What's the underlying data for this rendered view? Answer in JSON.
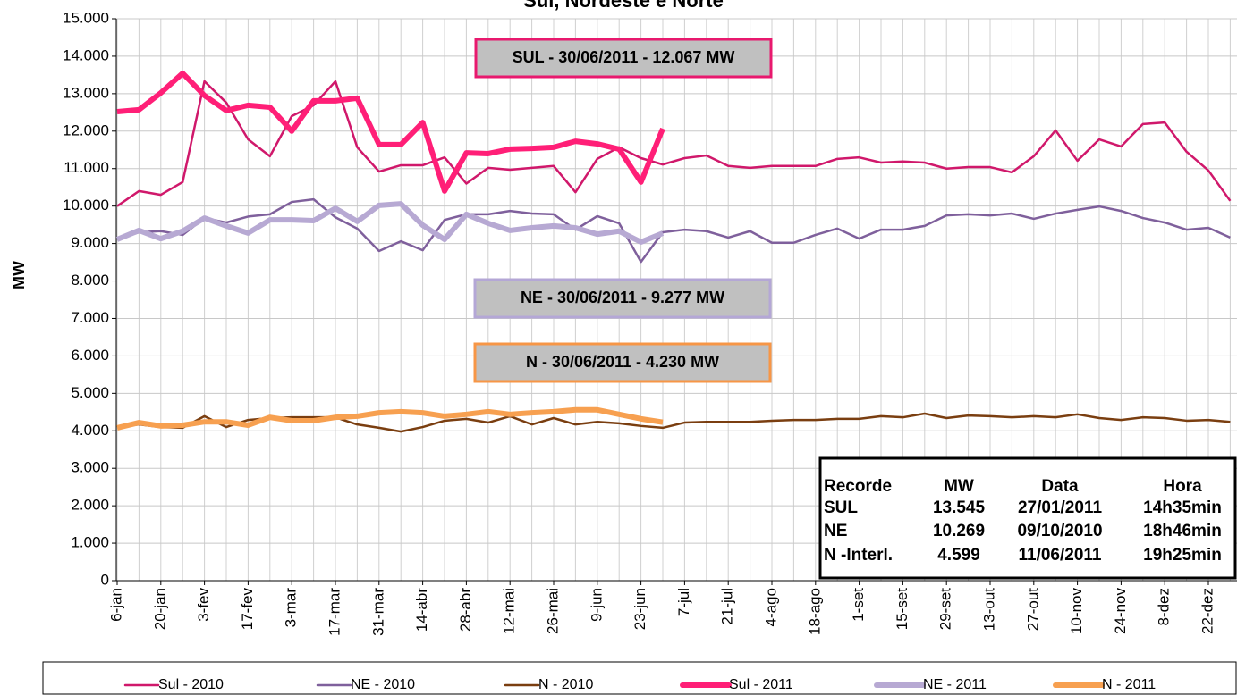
{
  "chart_data": {
    "type": "line",
    "title": "Sul, Nordeste e Norte",
    "y_label": "MW",
    "grid": true,
    "categories": [
      "6-jan",
      null,
      "20-jan",
      null,
      "3-fev",
      null,
      "17-fev",
      null,
      "3-mar",
      null,
      "17-mar",
      null,
      "31-mar",
      null,
      "14-abr",
      null,
      "28-abr",
      null,
      "12-mai",
      null,
      "26-mai",
      null,
      "9-jun",
      null,
      "23-jun",
      null,
      "7-jul",
      null,
      "21-jul",
      null,
      "4-ago",
      null,
      "18-ago",
      null,
      "1-set",
      null,
      "15-set",
      null,
      "29-set",
      null,
      "13-out",
      null,
      "27-out",
      null,
      "10-nov",
      null,
      "24-nov",
      null,
      "8-dez",
      null,
      "22-dez",
      null
    ],
    "ylim": [
      0,
      15000
    ],
    "yticks": [
      0,
      {
        "value": 1000,
        "label": "1.000"
      },
      {
        "value": 2000,
        "label": "2.000"
      },
      {
        "value": 3000,
        "label": "3.000"
      },
      {
        "value": 4000,
        "label": "4.000"
      },
      {
        "value": 5000,
        "label": "5.000"
      },
      {
        "value": 6000,
        "label": "6.000"
      },
      {
        "value": 7000,
        "label": "7.000"
      },
      {
        "value": 8000,
        "label": "8.000"
      },
      {
        "value": 9000,
        "label": "9.000"
      },
      {
        "value": 10000,
        "label": "10.000"
      },
      {
        "value": 11000,
        "label": "11.000"
      },
      {
        "value": 12000,
        "label": "12.000"
      },
      {
        "value": 13000,
        "label": "13.000"
      },
      {
        "value": 14000,
        "label": "14.000"
      },
      {
        "value": 15000,
        "label": "15.000"
      }
    ],
    "series": [
      {
        "name": "Sul - 2010",
        "color": "#d0186b",
        "line_width": 2.5,
        "values": [
          10000,
          10400,
          10300,
          10640,
          13330,
          12760,
          11780,
          11330,
          12400,
          12690,
          13330,
          11570,
          10920,
          11090,
          11090,
          11300,
          10600,
          11020,
          10970,
          11020,
          11070,
          10370,
          11260,
          11570,
          11280,
          11110,
          11280,
          11350,
          11070,
          11020,
          11070,
          11070,
          11070,
          11260,
          11300,
          11160,
          11190,
          11160,
          11000,
          11040,
          11040,
          10900,
          11330,
          12020,
          11210,
          11780,
          11590,
          12190,
          12230,
          11450,
          10950,
          10140
        ]
      },
      {
        "name": "NE - 2010",
        "color": "#7f609c",
        "line_width": 2.5,
        "values": [
          9110,
          9300,
          9330,
          9230,
          9680,
          9560,
          9720,
          9780,
          10110,
          10180,
          9700,
          9400,
          8800,
          9060,
          8820,
          9630,
          9780,
          9780,
          9870,
          9800,
          9780,
          9370,
          9730,
          9540,
          8510,
          9300,
          9370,
          9330,
          9160,
          9330,
          9020,
          9020,
          9230,
          9400,
          9130,
          9370,
          9370,
          9470,
          9750,
          9780,
          9750,
          9800,
          9660,
          9800,
          9900,
          9990,
          9870,
          9680,
          9560,
          9370,
          9420,
          9160
        ]
      },
      {
        "name": "N - 2010",
        "color": "#7a3e10",
        "line_width": 2.5,
        "values": [
          4100,
          4170,
          4100,
          4080,
          4390,
          4100,
          4290,
          4340,
          4360,
          4360,
          4360,
          4170,
          4080,
          3980,
          4100,
          4270,
          4320,
          4220,
          4390,
          4170,
          4340,
          4170,
          4240,
          4200,
          4130,
          4080,
          4220,
          4240,
          4240,
          4240,
          4270,
          4290,
          4290,
          4320,
          4320,
          4390,
          4360,
          4460,
          4340,
          4410,
          4390,
          4360,
          4390,
          4360,
          4440,
          4340,
          4290,
          4360,
          4340,
          4270,
          4290,
          4240
        ]
      },
      {
        "name": "Sul - 2011",
        "color": "#ff1f77",
        "line_width": 6,
        "values": [
          12520,
          12570,
          13020,
          13545,
          12950,
          12550,
          12690,
          12640,
          12000,
          12810,
          12810,
          12880,
          11640,
          11640,
          12230,
          10400,
          11420,
          11400,
          11520,
          11540,
          11570,
          11730,
          11660,
          11520,
          10640,
          12067,
          null,
          null,
          null,
          null,
          null,
          null,
          null,
          null,
          null,
          null,
          null,
          null,
          null,
          null,
          null,
          null,
          null,
          null,
          null,
          null,
          null,
          null,
          null,
          null,
          null,
          null
        ]
      },
      {
        "name": "NE - 2011",
        "color": "#b7a9d3",
        "line_width": 6,
        "values": [
          9110,
          9350,
          9130,
          9330,
          9680,
          9470,
          9280,
          9630,
          9630,
          9610,
          9940,
          9590,
          10020,
          10060,
          9490,
          9110,
          9780,
          9540,
          9350,
          9420,
          9470,
          9420,
          9250,
          9330,
          9040,
          9277,
          null,
          null,
          null,
          null,
          null,
          null,
          null,
          null,
          null,
          null,
          null,
          null,
          null,
          null,
          null,
          null,
          null,
          null,
          null,
          null,
          null,
          null,
          null,
          null,
          null,
          null
        ]
      },
      {
        "name": "N - 2011",
        "color": "#f7a050",
        "line_width": 6,
        "values": [
          4080,
          4220,
          4130,
          4150,
          4240,
          4240,
          4150,
          4360,
          4270,
          4270,
          4360,
          4390,
          4480,
          4510,
          4480,
          4390,
          4440,
          4510,
          4440,
          4480,
          4510,
          4560,
          4560,
          4440,
          4320,
          4230,
          null,
          null,
          null,
          null,
          null,
          null,
          null,
          null,
          null,
          null,
          null,
          null,
          null,
          null,
          null,
          null,
          null,
          null,
          null,
          null,
          null,
          null,
          null,
          null,
          null,
          null
        ]
      }
    ],
    "annotations": [
      {
        "text": "SUL - 30/06/2011 - 12.067 MW",
        "color": "#e8196e"
      },
      {
        "text": "NE - 30/06/2011 - 9.277 MW",
        "color": "#b4a7d6"
      },
      {
        "text": "N - 30/06/2011 - 4.230 MW",
        "color": "#f79646"
      }
    ],
    "table": {
      "header": [
        "Recorde",
        "MW",
        "Data",
        "Hora"
      ],
      "rows": [
        [
          "SUL",
          "13.545",
          "27/01/2011",
          "14h35min"
        ],
        [
          "NE",
          "10.269",
          "09/10/2010",
          "18h46min"
        ],
        [
          "N -Interl.",
          "4.599",
          "11/06/2011",
          "19h25min"
        ]
      ]
    }
  }
}
